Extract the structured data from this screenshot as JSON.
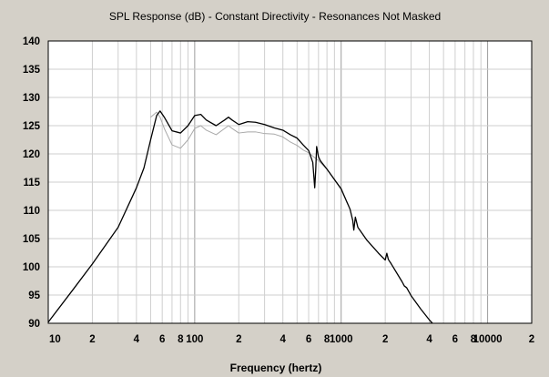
{
  "chart_data": {
    "type": "line",
    "title": "SPL Response (dB) - Constant Directivity - Resonances Not Masked",
    "xlabel": "Frequency (hertz)",
    "ylabel": "",
    "xscale": "log",
    "xlim": [
      10,
      20000
    ],
    "ylim": [
      90,
      140
    ],
    "x_tick_labels": [
      {
        "value": 10,
        "label": "10"
      },
      {
        "value": 20,
        "label": "2"
      },
      {
        "value": 40,
        "label": "4"
      },
      {
        "value": 60,
        "label": "6"
      },
      {
        "value": 80,
        "label": "8"
      },
      {
        "value": 100,
        "label": "100"
      },
      {
        "value": 200,
        "label": "2"
      },
      {
        "value": 400,
        "label": "4"
      },
      {
        "value": 600,
        "label": "6"
      },
      {
        "value": 800,
        "label": "8"
      },
      {
        "value": 1000,
        "label": "1000"
      },
      {
        "value": 2000,
        "label": "2"
      },
      {
        "value": 4000,
        "label": "4"
      },
      {
        "value": 6000,
        "label": "6"
      },
      {
        "value": 8000,
        "label": "8"
      },
      {
        "value": 10000,
        "label": "10000"
      },
      {
        "value": 20000,
        "label": "2"
      }
    ],
    "y_ticks": [
      90,
      95,
      100,
      105,
      110,
      115,
      120,
      125,
      130,
      135,
      140
    ],
    "grid": true,
    "series": [
      {
        "color": "#000000",
        "x": [
          10,
          15,
          20,
          30,
          40,
          45,
          50,
          55,
          58,
          62,
          70,
          80,
          90,
          100,
          110,
          120,
          140,
          160,
          170,
          180,
          200,
          230,
          260,
          300,
          350,
          400,
          450,
          500,
          550,
          600,
          640,
          660,
          670,
          680,
          700,
          720,
          800,
          1000,
          1150,
          1200,
          1220,
          1250,
          1300,
          1500,
          1800,
          2000,
          2050,
          2100,
          2200,
          2600,
          2700,
          2800,
          3000,
          3500,
          4000,
          4200
        ],
        "y": [
          90.2,
          96.2,
          100.5,
          107,
          114,
          117.5,
          122.5,
          126.8,
          127.6,
          126.5,
          124.1,
          123.7,
          125,
          126.8,
          127,
          126,
          125,
          126,
          126.5,
          126,
          125.2,
          125.7,
          125.6,
          125.2,
          124.6,
          124.2,
          123.4,
          122.8,
          121.6,
          120.6,
          118.5,
          114,
          117,
          121.3,
          119.5,
          118.8,
          117.3,
          113.8,
          110.2,
          108.2,
          106.5,
          108.8,
          107,
          104.7,
          102.4,
          101.2,
          102.4,
          101.3,
          100.5,
          97.4,
          96.6,
          96.3,
          94.9,
          92.5,
          90.6,
          90
        ]
      },
      {
        "color": "#a8a8a8",
        "x": [
          50,
          55,
          58,
          62,
          70,
          80,
          90,
          100,
          110,
          120,
          140,
          160,
          170,
          180,
          200,
          230,
          260,
          300,
          350,
          400,
          450,
          500,
          550,
          600,
          700,
          800,
          1000
        ],
        "y": [
          126.5,
          127.4,
          126.5,
          124.5,
          121.6,
          121,
          122.5,
          124.5,
          125,
          124.2,
          123.4,
          124.5,
          125,
          124.5,
          123.7,
          123.9,
          123.9,
          123.6,
          123.5,
          123,
          122.1,
          121.5,
          120.7,
          120.2,
          118.8,
          117.3,
          113.8
        ]
      }
    ]
  }
}
